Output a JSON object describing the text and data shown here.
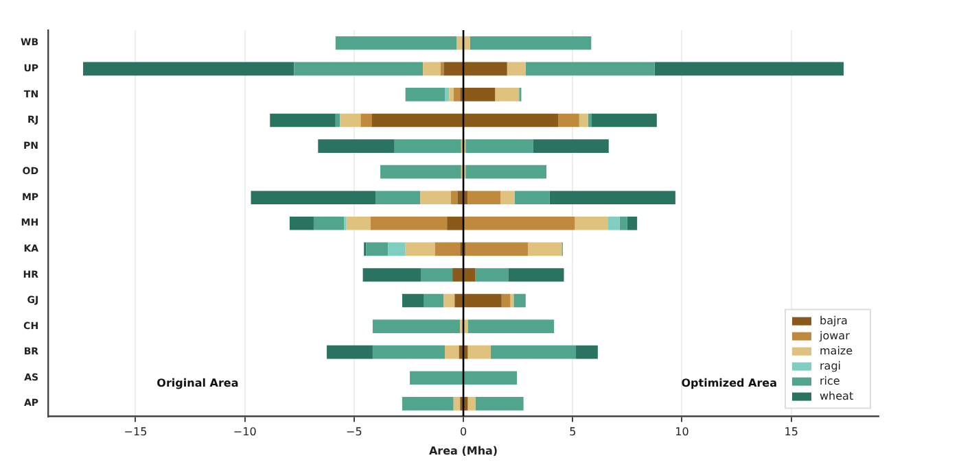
{
  "chart_data": {
    "type": "bar",
    "orientation": "horizontal",
    "stacked": true,
    "xlabel": "Area (Mha)",
    "categories": [
      "WB",
      "UP",
      "TN",
      "RJ",
      "PN",
      "OD",
      "MP",
      "MH",
      "KA",
      "HR",
      "GJ",
      "CH",
      "BR",
      "AS",
      "AP"
    ],
    "xlim": [
      -19,
      19
    ],
    "xticks": [
      -15,
      -10,
      -5,
      0,
      5,
      10,
      15
    ],
    "grid": "x",
    "legend": "bottom right",
    "ref_lines": [
      {
        "axis": "x",
        "value": 0,
        "color": "#000000"
      }
    ],
    "annotations": [
      "Original Area",
      "Optimized Area"
    ],
    "series": [
      {
        "color": "#8b5a1b",
        "values": [
          0,
          -0.9,
          -0.15,
          -4.2,
          0,
          0,
          -0.27,
          -0.75,
          -0.15,
          -0.5,
          -0.4,
          0,
          -0.2,
          0,
          -0.15
        ]
      },
      {
        "color": "#bf8a3e",
        "values": [
          0,
          -0.15,
          -0.3,
          -0.5,
          0,
          0,
          -0.3,
          -3.5,
          -1.15,
          0,
          0,
          0,
          0,
          0,
          0
        ]
      },
      {
        "color": "#dfc27d",
        "values": [
          -0.3,
          -0.8,
          -0.2,
          -0.95,
          -0.1,
          -0.1,
          -1.4,
          -1.1,
          -1.35,
          0,
          -0.5,
          -0.15,
          -0.65,
          0,
          -0.3
        ]
      },
      {
        "color": "#80cdc1",
        "values": [
          0,
          0,
          -0.2,
          0,
          0,
          0,
          0,
          -0.1,
          -0.8,
          0,
          0,
          0,
          0,
          0,
          0
        ]
      },
      {
        "color": "#52a58d",
        "values": [
          -5.55,
          -5.9,
          -1.8,
          -0.2,
          -3.05,
          -3.7,
          -2.05,
          -1.4,
          -1.0,
          -1.45,
          -0.9,
          -4.0,
          -3.3,
          -2.45,
          -2.35
        ]
      },
      {
        "color": "#2a7361",
        "values": [
          0,
          -9.65,
          0,
          -3.0,
          -3.5,
          0,
          -5.7,
          -1.1,
          -0.1,
          -2.65,
          -1.0,
          0,
          -2.1,
          0,
          0
        ]
      },
      {
        "name": "bajra",
        "color": "#8b5a1b",
        "values": [
          0,
          2.0,
          1.45,
          4.35,
          0,
          0,
          0.2,
          0,
          0.1,
          0.55,
          1.75,
          0,
          0.2,
          0,
          0.2
        ]
      },
      {
        "name": "jowar",
        "color": "#bf8a3e",
        "values": [
          0,
          0,
          0,
          0.95,
          0,
          0,
          1.5,
          5.1,
          2.85,
          0,
          0.4,
          0,
          0,
          0,
          0
        ]
      },
      {
        "name": "maize",
        "color": "#dfc27d",
        "values": [
          0.3,
          0.85,
          1.1,
          0.4,
          0.1,
          0.1,
          0.65,
          1.5,
          1.55,
          0,
          0.15,
          0.2,
          1.05,
          0,
          0.35
        ]
      },
      {
        "name": "ragi",
        "color": "#80cdc1",
        "values": [
          0,
          0,
          0,
          0,
          0,
          0,
          0,
          0.55,
          0,
          0,
          0,
          0,
          0,
          0,
          0
        ]
      },
      {
        "name": "rice",
        "color": "#52a58d",
        "values": [
          5.55,
          5.9,
          0.1,
          0.15,
          3.1,
          3.7,
          1.6,
          0.35,
          0.05,
          1.5,
          0.55,
          3.95,
          3.9,
          2.45,
          2.2
        ]
      },
      {
        "name": "wheat",
        "color": "#2a7361",
        "values": [
          0,
          8.65,
          0,
          3.0,
          3.45,
          0,
          5.75,
          0.45,
          0,
          2.55,
          0,
          0,
          1.0,
          0,
          0
        ]
      }
    ]
  }
}
